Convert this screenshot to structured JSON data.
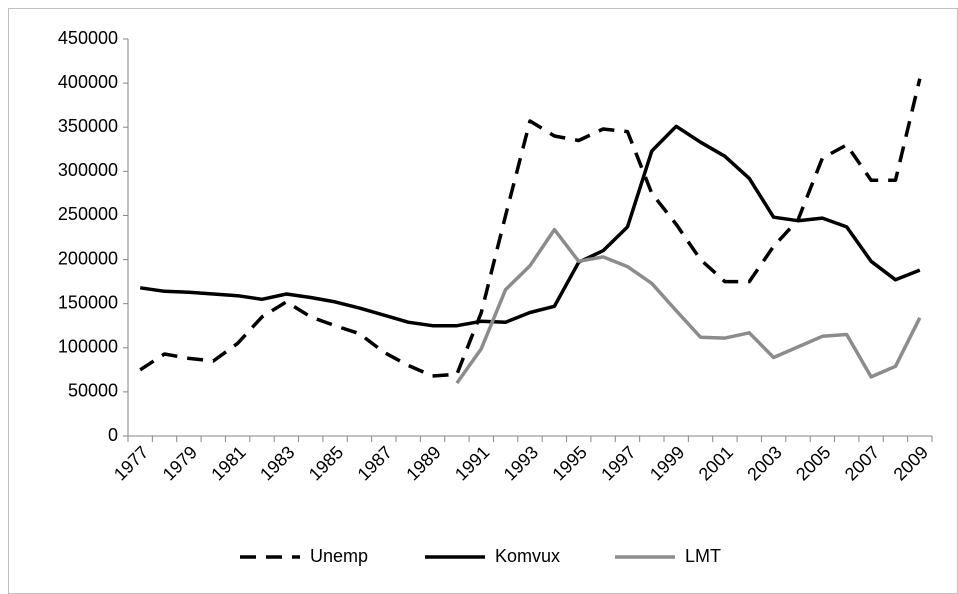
{
  "chart_data": {
    "type": "line",
    "categories": [
      "1977",
      null,
      "1979",
      null,
      "1981",
      null,
      "1983",
      null,
      "1985",
      null,
      "1987",
      null,
      "1989",
      null,
      "1991",
      null,
      "1993",
      null,
      "1995",
      null,
      "1997",
      null,
      "1999",
      null,
      "2001",
      null,
      "2003",
      null,
      "2005",
      null,
      "2007",
      null,
      "2009"
    ],
    "series": [
      {
        "name": "Unemp",
        "color": "#000000",
        "dash": "dashed",
        "values": [
          75000,
          93000,
          88000,
          85000,
          105000,
          135000,
          152000,
          135000,
          125000,
          116000,
          95000,
          80000,
          68000,
          70000,
          140000,
          250000,
          357000,
          340000,
          335000,
          348000,
          345000,
          275000,
          240000,
          200000,
          175000,
          175000,
          215000,
          245000,
          315000,
          330000,
          290000,
          290000,
          405000
        ]
      },
      {
        "name": "Komvux",
        "color": "#000000",
        "dash": "solid",
        "values": [
          168000,
          164000,
          163000,
          161000,
          159000,
          155000,
          161000,
          157000,
          152000,
          145000,
          137000,
          129000,
          125000,
          125000,
          130000,
          129000,
          140000,
          147000,
          197000,
          210000,
          237000,
          323000,
          351000,
          333000,
          317000,
          292000,
          248000,
          244000,
          247000,
          237000,
          198000,
          177000,
          188000
        ]
      },
      {
        "name": "LMT",
        "color": "#8c8c8c",
        "dash": "solid",
        "values": [
          null,
          null,
          null,
          null,
          null,
          null,
          null,
          null,
          null,
          null,
          null,
          null,
          null,
          60000,
          99000,
          166000,
          193000,
          234000,
          198000,
          203000,
          192000,
          173000,
          142000,
          112000,
          111000,
          117000,
          89000,
          101000,
          113000,
          115000,
          67000,
          79000,
          134000
        ]
      }
    ],
    "ylim": [
      0,
      450000
    ],
    "yticks": [
      0,
      50000,
      100000,
      150000,
      200000,
      250000,
      300000,
      350000,
      400000,
      450000
    ],
    "grid": false,
    "legend": "bottom"
  }
}
